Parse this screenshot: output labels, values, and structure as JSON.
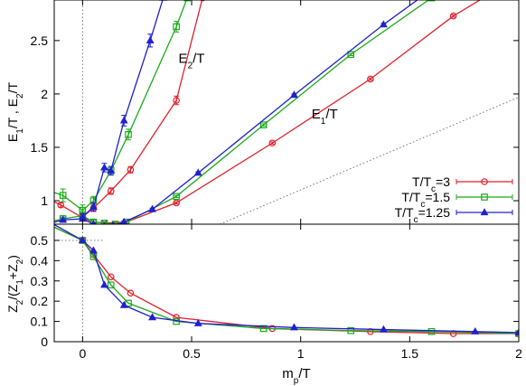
{
  "chart_data": [
    {
      "type": "line",
      "panel": "top",
      "xlabel": "",
      "ylabel": "E1/T , E2/T",
      "xlim": [
        -0.13,
        2.0
      ],
      "ylim": [
        0.78,
        2.88
      ],
      "yticks": [
        1,
        1.5,
        2,
        2.5
      ],
      "ytick_labels": [
        "1",
        "1.5",
        "2",
        "2.5"
      ],
      "grid": false,
      "legend_position": "right",
      "annotations": [
        {
          "text": "E2/T",
          "x": 0.44,
          "y": 2.29
        },
        {
          "text": "E1/T",
          "x": 1.05,
          "y": 1.77
        }
      ],
      "reference_lines": [
        {
          "x1": 0.63,
          "y1": 0.78,
          "x2": 2.0,
          "y2": 1.97,
          "style": "dotted",
          "color": "#666666"
        },
        {
          "x1": 0.0,
          "y1": 0.78,
          "x2": 0.0,
          "y2": 2.88,
          "style": "dotted",
          "color": "#666666"
        }
      ],
      "series": [
        {
          "name": "T/Tc=3",
          "color": "#e0202a",
          "marker": "circle",
          "group": "E1",
          "x": [
            -0.2,
            -0.1,
            0.0,
            0.05,
            0.1,
            0.2,
            0.43,
            0.87,
            1.32,
            1.7,
            2.0
          ],
          "y": [
            1.06,
            0.96,
            0.84,
            0.8,
            0.79,
            0.8,
            0.98,
            1.54,
            2.14,
            2.73,
            3.1
          ],
          "err": [
            0,
            0.02,
            0.02,
            0,
            0.01,
            0.01,
            0.01,
            0.01,
            0.01,
            0.01,
            0
          ]
        },
        {
          "name": "T/Tc=3",
          "color": "#e0202a",
          "marker": "circle",
          "group": "E2",
          "x": [
            0.0,
            0.05,
            0.13,
            0.22,
            0.43,
            0.55
          ],
          "y": [
            0.85,
            0.93,
            1.09,
            1.29,
            1.94,
            2.9
          ],
          "err": [
            0.02,
            0.03,
            0.03,
            0.03,
            0.04,
            0
          ]
        },
        {
          "name": "T/Tc=1.5",
          "color": "#1aaa1a",
          "marker": "square",
          "group": "E1",
          "x": [
            -0.2,
            -0.09,
            0.0,
            0.05,
            0.1,
            0.15,
            0.2,
            0.43,
            0.83,
            1.23,
            1.6
          ],
          "y": [
            0.78,
            0.83,
            0.86,
            0.8,
            0.79,
            0.78,
            0.8,
            1.04,
            1.71,
            2.37,
            2.9
          ],
          "err": [
            0,
            0.03,
            0.04,
            0.02,
            0.01,
            0.01,
            0.01,
            0.01,
            0.01,
            0.01,
            0
          ]
        },
        {
          "name": "T/Tc=1.5",
          "color": "#1aaa1a",
          "marker": "square",
          "group": "E2",
          "x": [
            -0.2,
            -0.09,
            0.0,
            0.05,
            0.13,
            0.21,
            0.43,
            0.48
          ],
          "y": [
            1.12,
            1.05,
            0.91,
            1.0,
            1.28,
            1.62,
            2.63,
            2.9
          ],
          "err": [
            0,
            0.06,
            0.05,
            0.04,
            0.04,
            0.05,
            0.05,
            0
          ]
        },
        {
          "name": "T/Tc=1.25",
          "color": "#2020d0",
          "marker": "triangle",
          "group": "E1",
          "x": [
            -0.2,
            -0.09,
            0.0,
            0.05,
            0.1,
            0.14,
            0.19,
            0.32,
            0.53,
            0.97,
            1.38,
            1.75
          ],
          "y": [
            0.76,
            0.82,
            0.83,
            0.78,
            0.76,
            0.77,
            0.8,
            0.92,
            1.26,
            1.99,
            2.65,
            3.2
          ],
          "err": [
            0,
            0.02,
            0.02,
            0.01,
            0.01,
            0.01,
            0.01,
            0.01,
            0.01,
            0.01,
            0.01,
            0
          ]
        },
        {
          "name": "T/Tc=1.25",
          "color": "#2020d0",
          "marker": "triangle",
          "group": "E2",
          "x": [
            0.0,
            0.05,
            0.1,
            0.13,
            0.19,
            0.31,
            0.37
          ],
          "y": [
            0.85,
            0.94,
            1.31,
            1.28,
            1.75,
            2.5,
            2.9
          ],
          "err": [
            0.03,
            0.04,
            0.04,
            0.04,
            0.05,
            0.06,
            0
          ]
        }
      ],
      "legend": [
        {
          "label_main": "T/T",
          "label_sub": "c",
          "label_end": "=3",
          "color": "#e0202a",
          "marker": "circle"
        },
        {
          "label_main": "T/T",
          "label_sub": "c",
          "label_end": "=1.5",
          "color": "#1aaa1a",
          "marker": "square"
        },
        {
          "label_main": "T/T",
          "label_sub": "c",
          "label_end": "=1.25",
          "color": "#2020d0",
          "marker": "triangle"
        }
      ]
    },
    {
      "type": "line",
      "panel": "bottom",
      "xlabel": "mp/T",
      "ylabel": "Z2/(Z1+Z2)",
      "xlim": [
        -0.13,
        2.0
      ],
      "ylim": [
        0,
        0.58
      ],
      "xticks": [
        0,
        0.5,
        1,
        1.5,
        2
      ],
      "xtick_labels": [
        "0",
        "0.5",
        "1",
        "1.5",
        "2"
      ],
      "yticks": [
        0,
        0.1,
        0.2,
        0.3,
        0.4,
        0.5
      ],
      "ytick_labels": [
        "0",
        "0.1",
        "0.2",
        "0.3",
        "0.4",
        "0.5"
      ],
      "grid": false,
      "reference_lines": [
        {
          "x1": 0.0,
          "y1": 0,
          "x2": 0.0,
          "y2": 0.58,
          "style": "dotted",
          "color": "#666666"
        },
        {
          "x1": -0.13,
          "y1": 0.5,
          "x2": 0.1,
          "y2": 0.5,
          "style": "dotted",
          "color": "#666666"
        }
      ],
      "series": [
        {
          "name": "T/Tc=3",
          "color": "#e0202a",
          "marker": "circle",
          "x": [
            -0.2,
            0.0,
            0.05,
            0.13,
            0.22,
            0.43,
            0.87,
            1.32,
            1.7,
            2.0
          ],
          "y": [
            0.6,
            0.5,
            0.43,
            0.32,
            0.24,
            0.12,
            0.065,
            0.05,
            0.04,
            0.04
          ]
        },
        {
          "name": "T/Tc=1.5",
          "color": "#1aaa1a",
          "marker": "square",
          "x": [
            -0.2,
            0.0,
            0.05,
            0.13,
            0.21,
            0.43,
            0.83,
            1.23,
            1.6,
            2.0
          ],
          "y": [
            0.6,
            0.5,
            0.42,
            0.28,
            0.19,
            0.1,
            0.065,
            0.055,
            0.05,
            0.04
          ]
        },
        {
          "name": "T/Tc=1.25",
          "color": "#2020d0",
          "marker": "triangle",
          "x": [
            -0.2,
            0.0,
            0.05,
            0.1,
            0.19,
            0.32,
            0.53,
            0.97,
            1.38,
            1.8,
            2.0
          ],
          "y": [
            0.62,
            0.5,
            0.45,
            0.28,
            0.18,
            0.12,
            0.09,
            0.07,
            0.06,
            0.05,
            0.045
          ]
        }
      ]
    }
  ]
}
